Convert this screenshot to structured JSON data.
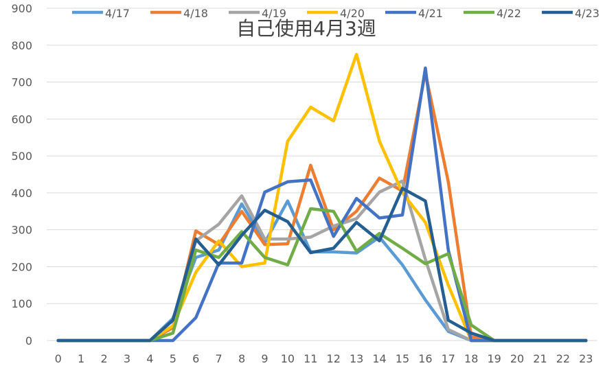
{
  "chart_data": {
    "type": "line",
    "title": "自己使用4月3週",
    "xlabel": "",
    "ylabel": "",
    "x": [
      0,
      1,
      2,
      3,
      4,
      5,
      6,
      7,
      8,
      9,
      10,
      11,
      12,
      13,
      14,
      15,
      16,
      17,
      18,
      19,
      20,
      21,
      22,
      23
    ],
    "ylim": [
      0,
      900
    ],
    "yticks": [
      0,
      100,
      200,
      300,
      400,
      500,
      600,
      700,
      800,
      900
    ],
    "grid": true,
    "legend_position": "top",
    "series": [
      {
        "name": "4/17",
        "color": "#5B9BD5",
        "values": [
          0,
          0,
          0,
          0,
          0,
          60,
          225,
          245,
          370,
          265,
          378,
          240,
          240,
          237,
          280,
          205,
          110,
          25,
          0,
          0,
          0,
          0,
          0,
          0
        ]
      },
      {
        "name": "4/18",
        "color": "#ED7D31",
        "values": [
          0,
          0,
          0,
          0,
          0,
          35,
          297,
          260,
          350,
          260,
          262,
          475,
          300,
          350,
          440,
          405,
          725,
          430,
          10,
          0,
          0,
          0,
          0,
          0
        ]
      },
      {
        "name": "4/19",
        "color": "#A5A5A5",
        "values": [
          0,
          0,
          0,
          0,
          0,
          40,
          270,
          315,
          392,
          275,
          275,
          280,
          310,
          330,
          402,
          432,
          220,
          30,
          0,
          0,
          0,
          0,
          0,
          0
        ]
      },
      {
        "name": "4/20",
        "color": "#FFC000",
        "values": [
          0,
          0,
          0,
          0,
          0,
          40,
          185,
          270,
          200,
          210,
          540,
          632,
          595,
          775,
          540,
          400,
          320,
          150,
          0,
          0,
          0,
          0,
          0,
          0
        ]
      },
      {
        "name": "4/21",
        "color": "#4472C4",
        "values": [
          0,
          0,
          0,
          0,
          0,
          0,
          62,
          210,
          210,
          402,
          430,
          435,
          282,
          385,
          332,
          340,
          738,
          245,
          0,
          0,
          0,
          0,
          0,
          0
        ]
      },
      {
        "name": "4/22",
        "color": "#70AD47",
        "values": [
          0,
          0,
          0,
          0,
          0,
          20,
          245,
          225,
          295,
          225,
          205,
          357,
          350,
          242,
          290,
          250,
          208,
          235,
          42,
          0,
          0,
          0,
          0,
          0
        ]
      },
      {
        "name": "4/23",
        "color": "#255E91",
        "values": [
          0,
          0,
          0,
          0,
          0,
          55,
          275,
          205,
          285,
          353,
          322,
          238,
          250,
          320,
          270,
          412,
          378,
          55,
          20,
          0,
          0,
          0,
          0,
          0
        ]
      }
    ]
  }
}
